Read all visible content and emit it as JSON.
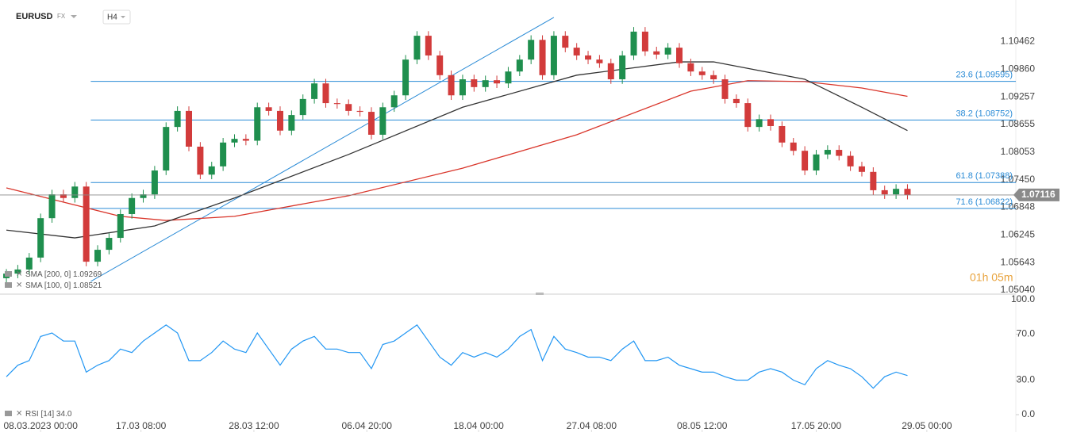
{
  "header": {
    "symbol": "EURUSD",
    "market": "FX",
    "interval": "H4"
  },
  "countdown": "01h 05m",
  "chart_data": [
    {
      "type": "candlestick",
      "xlim": [
        -0.56,
        88.5
      ],
      "ylim": [
        1.0497,
        1.1137
      ],
      "yticks": [
        1.10462,
        {
          "value": 1.0986,
          "label": "1.09860"
        },
        1.09257,
        1.08655,
        1.08053,
        {
          "value": 1.0745,
          "label": "1.07450"
        },
        1.06848,
        1.06245,
        1.05643,
        {
          "value": 1.0504,
          "label": "1.05040"
        }
      ],
      "up_color": "#1f8f4e",
      "down_color": "#d23b3b",
      "open": [
        1.053,
        1.054,
        1.0549,
        1.0575,
        1.0661,
        1.0713,
        1.0705,
        1.073,
        1.0566,
        1.0592,
        1.0618,
        1.067,
        1.0705,
        1.0713,
        1.0765,
        1.086,
        1.0895,
        1.0817,
        1.0756,
        1.0774,
        1.0826,
        1.0834,
        1.083,
        1.0903,
        1.0895,
        1.0852,
        1.0886,
        1.0921,
        1.0955,
        1.0912,
        1.091,
        1.0895,
        1.0893,
        1.0843,
        1.0903,
        1.0929,
        1.1007,
        1.1059,
        1.1016,
        1.0973,
        1.0929,
        1.0964,
        1.0947,
        1.0962,
        1.0955,
        1.0981,
        1.1007,
        1.105,
        1.0973,
        1.1059,
        1.1033,
        1.1016,
        1.1007,
        1.0999,
        1.0964,
        1.1016,
        1.1068,
        1.1025,
        1.1018,
        1.1033,
        1.0999,
        1.0981,
        1.0973,
        1.0964,
        1.0921,
        1.0912,
        1.086,
        1.0877,
        1.0862,
        1.0826,
        1.0808,
        1.0765,
        1.08,
        1.081,
        1.0797,
        1.0774,
        1.0762,
        1.0722,
        1.0713,
        1.0725
      ],
      "high": [
        1.055,
        1.0559,
        1.0585,
        1.0671,
        1.0723,
        1.0723,
        1.074,
        1.074,
        1.0602,
        1.0628,
        1.068,
        1.0715,
        1.0723,
        1.0775,
        1.087,
        1.0905,
        1.0905,
        1.0827,
        1.0784,
        1.0836,
        1.0844,
        1.0844,
        1.0913,
        1.0913,
        1.0905,
        1.0896,
        1.0931,
        1.0965,
        1.0965,
        1.0922,
        1.092,
        1.0905,
        1.0903,
        1.0913,
        1.0939,
        1.1017,
        1.1069,
        1.1069,
        1.1026,
        1.0983,
        1.0974,
        1.0974,
        1.0972,
        1.0972,
        1.0991,
        1.1017,
        1.106,
        1.106,
        1.1069,
        1.1069,
        1.1043,
        1.1026,
        1.1017,
        1.1009,
        1.1026,
        1.1078,
        1.1078,
        1.1035,
        1.1043,
        1.1043,
        1.1009,
        1.0991,
        1.0983,
        1.0974,
        1.0931,
        1.0922,
        1.0887,
        1.0887,
        1.0872,
        1.0836,
        1.0818,
        1.081,
        1.082,
        1.082,
        1.0807,
        1.0784,
        1.0772,
        1.0732,
        1.0735,
        1.0735
      ],
      "low": [
        1.052,
        1.053,
        1.0539,
        1.0565,
        1.0651,
        1.0695,
        1.0695,
        1.0556,
        1.0556,
        1.0582,
        1.0608,
        1.066,
        1.0695,
        1.0703,
        1.0755,
        1.085,
        1.0807,
        1.0746,
        1.0746,
        1.0764,
        1.0816,
        1.082,
        1.082,
        1.0885,
        1.0842,
        1.0842,
        1.0876,
        1.0911,
        1.0902,
        1.09,
        1.0885,
        1.0883,
        1.0833,
        1.0833,
        1.0893,
        1.0919,
        1.0997,
        1.1006,
        1.0963,
        1.0919,
        1.0919,
        1.0937,
        1.0937,
        1.0945,
        1.0945,
        1.0971,
        1.0997,
        1.0963,
        1.0963,
        1.1023,
        1.1006,
        1.0997,
        1.0989,
        1.0954,
        1.0954,
        1.1006,
        1.1015,
        1.1008,
        1.1008,
        1.0989,
        1.0971,
        1.0963,
        1.0954,
        1.0911,
        1.0902,
        1.085,
        1.085,
        1.0852,
        1.0816,
        1.0798,
        1.0755,
        1.0755,
        1.079,
        1.0787,
        1.0764,
        1.0752,
        1.0712,
        1.0703,
        1.0703,
        1.0702
      ],
      "close": [
        1.054,
        1.0549,
        1.0575,
        1.0661,
        1.0713,
        1.0705,
        1.073,
        1.0566,
        1.0592,
        1.0618,
        1.067,
        1.0705,
        1.0713,
        1.0765,
        1.086,
        1.0895,
        1.0817,
        1.0756,
        1.0774,
        1.0826,
        1.0834,
        1.083,
        1.0903,
        1.0895,
        1.0852,
        1.0886,
        1.0921,
        1.0955,
        1.0912,
        1.091,
        1.0895,
        1.0893,
        1.0843,
        1.0903,
        1.0929,
        1.1007,
        1.1059,
        1.1016,
        1.0973,
        1.0929,
        1.0964,
        1.0947,
        1.0962,
        1.0955,
        1.0981,
        1.1007,
        1.105,
        1.0973,
        1.1059,
        1.1033,
        1.1016,
        1.1007,
        1.0999,
        1.0964,
        1.1016,
        1.1068,
        1.1025,
        1.1018,
        1.1033,
        1.0999,
        1.0981,
        1.0973,
        1.0964,
        1.0921,
        1.0912,
        1.086,
        1.0877,
        1.0862,
        1.0826,
        1.0808,
        1.0765,
        1.08,
        1.081,
        1.0797,
        1.0774,
        1.0762,
        1.0722,
        1.0713,
        1.0725,
        1.07116
      ],
      "series": [
        {
          "name": "SMA [200, 0]",
          "color": "#d9352a",
          "x": [
            0,
            10,
            14,
            20,
            30,
            40,
            50,
            60,
            65,
            70,
            75,
            79
          ],
          "values": [
            1.0727,
            1.0665,
            1.0656,
            1.0665,
            1.071,
            1.077,
            1.0843,
            1.0938,
            1.0961,
            1.0959,
            1.0945,
            1.09269
          ]
        },
        {
          "name": "SMA [100, 0]",
          "color": "#333333",
          "x": [
            0,
            6,
            13,
            20,
            30,
            40,
            50,
            59,
            62,
            70,
            75,
            79
          ],
          "values": [
            1.0635,
            1.0618,
            1.0644,
            1.0705,
            1.08,
            1.0903,
            1.0973,
            1.1002,
            1.1002,
            1.0964,
            1.0903,
            1.08521
          ]
        }
      ],
      "trendline": {
        "color": "#2a8bd6",
        "x": [
          7.4,
          48
        ],
        "values": [
          1.0523,
          1.1099
        ]
      },
      "fib_levels": [
        {
          "label": "23.6 (1.09595)",
          "price": 1.09595
        },
        {
          "label": "38.2 (1.08752)",
          "price": 1.08752
        },
        {
          "label": "61.8 (1.07388)",
          "price": 1.07388
        },
        {
          "label": "71.6 (1.06822)",
          "price": 1.06822
        }
      ]
    },
    {
      "type": "line",
      "name": "RSI [14]",
      "color": "#2196f3",
      "xlim": [
        -0.56,
        88.5
      ],
      "ylim": [
        -11.7,
        104.1
      ],
      "yticks": [
        {
          "value": 100,
          "label": "100.0"
        },
        {
          "value": 70,
          "label": "70.0"
        },
        {
          "value": 30,
          "label": "30.0"
        },
        {
          "value": 0,
          "label": "0.0"
        }
      ],
      "xticks": [
        {
          "value": 3,
          "label": "08.03.2023 00:00"
        },
        {
          "value": 11.8,
          "label": "17.03 08:00"
        },
        {
          "value": 21.7,
          "label": "28.03 12:00"
        },
        {
          "value": 31.6,
          "label": "06.04 20:00"
        },
        {
          "value": 41.4,
          "label": "18.04 00:00"
        },
        {
          "value": 51.3,
          "label": "27.04 08:00"
        },
        {
          "value": 61,
          "label": "08.05 12:00"
        },
        {
          "value": 71,
          "label": "17.05 20:00"
        },
        {
          "value": 80.7,
          "label": "29.05 00:00"
        }
      ],
      "values": [
        33,
        43,
        47,
        68,
        71,
        64,
        64,
        37,
        43,
        47,
        57,
        54,
        64,
        71,
        78,
        71,
        47,
        47,
        54,
        64,
        57,
        54,
        71,
        57,
        43,
        57,
        64,
        68,
        57,
        57,
        54,
        54,
        40,
        61,
        64,
        71,
        78,
        64,
        50,
        43,
        54,
        50,
        54,
        50,
        57,
        68,
        74,
        47,
        68,
        57,
        54,
        50,
        50,
        47,
        57,
        64,
        47,
        47,
        50,
        43,
        40,
        37,
        37,
        33,
        30,
        30,
        37,
        40,
        37,
        30,
        26,
        40,
        47,
        43,
        40,
        33,
        23,
        33,
        37,
        34
      ],
      "value_labels": [
        null,
        null,
        null,
        null,
        null,
        null,
        null,
        null,
        null,
        null,
        null,
        null,
        null,
        null,
        null,
        null,
        null,
        null,
        null,
        null,
        null,
        null,
        null,
        null,
        null,
        null,
        null,
        null,
        null,
        null,
        null,
        null,
        null,
        null,
        null,
        null,
        null,
        null,
        null,
        null,
        null,
        null,
        null,
        null,
        null,
        null,
        null,
        null,
        null,
        null,
        null,
        null,
        null,
        null,
        null,
        null,
        null,
        null,
        null,
        null,
        null,
        null,
        null,
        null,
        null,
        null,
        null,
        null,
        null,
        null,
        null,
        null,
        null,
        null,
        null,
        null,
        null,
        null,
        null,
        "34.0"
      ]
    }
  ]
}
